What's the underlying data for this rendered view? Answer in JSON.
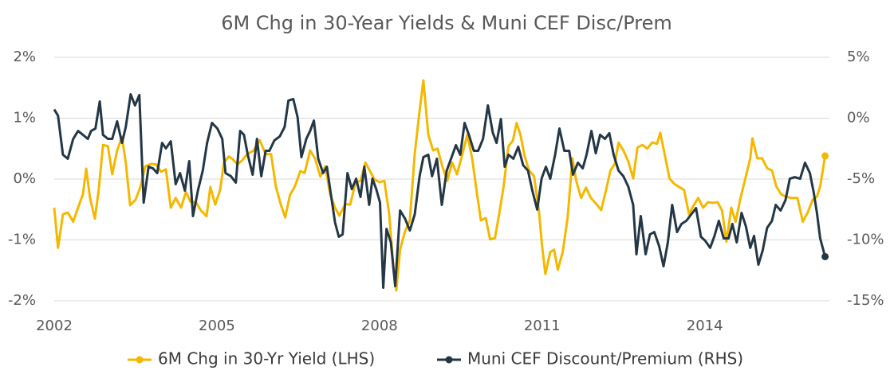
{
  "chart_data": {
    "type": "line",
    "title": "6M Chg in 30-Year Yields & Muni CEF Disc/Prem",
    "xlim": [
      2002,
      2016.3
    ],
    "xticks": [
      2002,
      2005,
      2008,
      2011,
      2014
    ],
    "ylim": [
      -2,
      2
    ],
    "yticks": [
      {
        "value": -2,
        "label": "-2%"
      },
      {
        "value": -1,
        "label": "-1%"
      },
      {
        "value": 0,
        "label": "0%"
      },
      {
        "value": 1,
        "label": "1%"
      },
      {
        "value": 2,
        "label": "2%"
      }
    ],
    "y2lim": [
      -15,
      5
    ],
    "y2ticks": [
      {
        "value": -15,
        "label": "-15%"
      },
      {
        "value": -10,
        "label": "-10%"
      },
      {
        "value": -5,
        "label": "-5%"
      },
      {
        "value": 0,
        "label": "0%"
      },
      {
        "value": 5,
        "label": "5%"
      }
    ],
    "grid": true,
    "legend": "bottom",
    "series": [
      {
        "name": "6M Chg in 30-Yr Yield (LHS)",
        "color": "#f5b800",
        "axis": "y",
        "x": [
          2002.0,
          2002.07,
          2002.16,
          2002.25,
          2002.35,
          2002.46,
          2002.53,
          2002.59,
          2002.66,
          2002.75,
          2002.82,
          2002.9,
          2002.99,
          2003.07,
          2003.16,
          2003.25,
          2003.32,
          2003.4,
          2003.5,
          2003.59,
          2003.68,
          2003.79,
          2003.88,
          2003.97,
          2004.06,
          2004.15,
          2004.24,
          2004.34,
          2004.43,
          2004.51,
          2004.62,
          2004.71,
          2004.81,
          2004.88,
          2004.97,
          2005.06,
          2005.13,
          2005.22,
          2005.29,
          2005.38,
          2005.47,
          2005.56,
          2005.68,
          2005.79,
          2005.9,
          2006.0,
          2006.09,
          2006.18,
          2006.26,
          2006.35,
          2006.44,
          2006.54,
          2006.62,
          2006.72,
          2006.81,
          2006.91,
          2007.0,
          2007.09,
          2007.18,
          2007.26,
          2007.37,
          2007.46,
          2007.56,
          2007.65,
          2007.74,
          2007.82,
          2007.91,
          2008.0,
          2008.09,
          2008.18,
          2008.26,
          2008.31,
          2008.38,
          2008.47,
          2008.56,
          2008.65,
          2008.74,
          2008.81,
          2008.9,
          2008.99,
          2009.07,
          2009.16,
          2009.25,
          2009.34,
          2009.43,
          2009.53,
          2009.62,
          2009.71,
          2009.79,
          2009.87,
          2009.96,
          2010.04,
          2010.13,
          2010.22,
          2010.29,
          2010.38,
          2010.46,
          2010.53,
          2010.6,
          2010.68,
          2010.76,
          2010.85,
          2010.94,
          2011.0,
          2011.06,
          2011.15,
          2011.22,
          2011.29,
          2011.38,
          2011.47,
          2011.56,
          2011.63,
          2011.72,
          2011.81,
          2011.9,
          2012.0,
          2012.09,
          2012.18,
          2012.26,
          2012.34,
          2012.41,
          2012.5,
          2012.59,
          2012.68,
          2012.76,
          2012.85,
          2012.94,
          2013.03,
          2013.12,
          2013.18,
          2013.26,
          2013.35,
          2013.44,
          2013.53,
          2013.62,
          2013.71,
          2013.79,
          2013.88,
          2013.97,
          2014.06,
          2014.15,
          2014.24,
          2014.32,
          2014.4,
          2014.49,
          2014.57,
          2014.66,
          2014.75,
          2014.84,
          2014.88,
          2014.97,
          2015.06,
          2015.15,
          2015.24,
          2015.32,
          2015.41,
          2015.5,
          2015.59,
          2015.71,
          2015.81,
          2015.9,
          2015.99,
          2016.07,
          2016.13,
          2016.22
        ],
        "values": [
          -0.47,
          -1.13,
          -0.58,
          -0.55,
          -0.7,
          -0.42,
          -0.25,
          0.17,
          -0.31,
          -0.65,
          -0.18,
          0.56,
          0.54,
          0.08,
          0.47,
          0.69,
          0.27,
          -0.43,
          -0.34,
          -0.13,
          0.21,
          0.25,
          0.24,
          0.12,
          0.16,
          -0.47,
          -0.31,
          -0.47,
          -0.21,
          -0.37,
          -0.39,
          -0.52,
          -0.61,
          -0.13,
          -0.42,
          -0.18,
          0.27,
          0.37,
          0.33,
          0.24,
          0.31,
          0.41,
          0.47,
          0.64,
          0.41,
          0.41,
          -0.13,
          -0.42,
          -0.63,
          -0.26,
          -0.12,
          0.13,
          0.1,
          0.47,
          0.34,
          0.04,
          0.21,
          -0.25,
          -0.47,
          -0.6,
          -0.41,
          -0.42,
          -0.05,
          -0.03,
          0.27,
          0.14,
          -0.01,
          -0.05,
          -0.03,
          -0.58,
          -1.49,
          -1.83,
          -1.16,
          -0.86,
          -0.68,
          0.41,
          1.12,
          1.62,
          0.73,
          0.47,
          0.5,
          0.21,
          -0.03,
          0.27,
          0.08,
          0.41,
          0.73,
          0.34,
          -0.18,
          -0.68,
          -0.64,
          -0.99,
          -0.97,
          -0.51,
          -0.12,
          0.54,
          0.63,
          0.92,
          0.73,
          0.37,
          0.14,
          0.05,
          -0.51,
          -1.1,
          -1.56,
          -1.2,
          -1.16,
          -1.49,
          -1.2,
          -0.64,
          0.34,
          -0.03,
          -0.31,
          -0.14,
          -0.31,
          -0.41,
          -0.51,
          -0.18,
          0.14,
          0.25,
          0.6,
          0.47,
          0.29,
          0.01,
          0.52,
          0.56,
          0.5,
          0.6,
          0.58,
          0.76,
          0.41,
          0.01,
          -0.08,
          -0.13,
          -0.18,
          -0.58,
          -0.44,
          -0.31,
          -0.47,
          -0.38,
          -0.39,
          -0.38,
          -0.52,
          -1.03,
          -0.47,
          -0.7,
          -0.31,
          0.01,
          0.34,
          0.67,
          0.34,
          0.34,
          0.18,
          0.14,
          -0.12,
          -0.25,
          -0.29,
          -0.31,
          -0.31,
          -0.7,
          -0.55,
          -0.34,
          -0.29,
          -0.12,
          0.38
        ]
      },
      {
        "name": "Muni CEF Discount/Premium (RHS)",
        "color": "#243746",
        "axis": "y2",
        "x": [
          2002.0,
          2002.07,
          2002.16,
          2002.25,
          2002.35,
          2002.44,
          2002.53,
          2002.62,
          2002.68,
          2002.76,
          2002.84,
          2002.9,
          2002.99,
          2003.07,
          2003.16,
          2003.25,
          2003.32,
          2003.41,
          2003.49,
          2003.57,
          2003.65,
          2003.74,
          2003.82,
          2003.9,
          2003.99,
          2004.06,
          2004.15,
          2004.24,
          2004.32,
          2004.41,
          2004.49,
          2004.56,
          2004.65,
          2004.74,
          2004.82,
          2004.91,
          2005.01,
          2005.1,
          2005.16,
          2005.26,
          2005.35,
          2005.43,
          2005.5,
          2005.57,
          2005.66,
          2005.74,
          2005.82,
          2005.9,
          2005.97,
          2006.06,
          2006.16,
          2006.25,
          2006.32,
          2006.41,
          2006.49,
          2006.56,
          2006.65,
          2006.72,
          2006.79,
          2006.87,
          2006.96,
          2007.03,
          2007.1,
          2007.18,
          2007.25,
          2007.32,
          2007.41,
          2007.49,
          2007.57,
          2007.65,
          2007.72,
          2007.81,
          2007.87,
          2007.94,
          2008.01,
          2008.07,
          2008.13,
          2008.21,
          2008.29,
          2008.38,
          2008.47,
          2008.56,
          2008.65,
          2008.74,
          2008.81,
          2008.9,
          2008.97,
          2009.06,
          2009.15,
          2009.24,
          2009.32,
          2009.41,
          2009.49,
          2009.57,
          2009.65,
          2009.74,
          2009.82,
          2009.91,
          2010.0,
          2010.09,
          2010.16,
          2010.24,
          2010.31,
          2010.38,
          2010.47,
          2010.56,
          2010.65,
          2010.74,
          2010.82,
          2010.91,
          2010.99,
          2011.07,
          2011.15,
          2011.24,
          2011.32,
          2011.41,
          2011.5,
          2011.57,
          2011.66,
          2011.75,
          2011.82,
          2011.91,
          2011.99,
          2012.07,
          2012.16,
          2012.24,
          2012.32,
          2012.41,
          2012.5,
          2012.59,
          2012.68,
          2012.74,
          2012.82,
          2012.91,
          2012.99,
          2013.07,
          2013.16,
          2013.24,
          2013.32,
          2013.4,
          2013.49,
          2013.57,
          2013.66,
          2013.75,
          2013.84,
          2013.93,
          2014.01,
          2014.1,
          2014.18,
          2014.26,
          2014.35,
          2014.44,
          2014.51,
          2014.59,
          2014.68,
          2014.76,
          2014.84,
          2014.91,
          2014.99,
          2015.07,
          2015.15,
          2015.24,
          2015.31,
          2015.4,
          2015.49,
          2015.57,
          2015.66,
          2015.76,
          2015.85,
          2015.94,
          2016.01,
          2016.07,
          2016.13,
          2016.22
        ],
        "values": [
          0.72,
          0.2,
          -3.0,
          -3.33,
          -1.7,
          -1.05,
          -1.37,
          -1.7,
          -1.05,
          -0.85,
          1.37,
          -1.37,
          -1.7,
          -1.7,
          -0.26,
          -2.03,
          -0.72,
          1.96,
          1.05,
          1.9,
          -6.93,
          -3.99,
          -4.12,
          -4.51,
          -2.03,
          -2.48,
          -1.9,
          -5.42,
          -4.51,
          -5.95,
          -3.53,
          -8.04,
          -5.95,
          -4.31,
          -2.03,
          -0.39,
          -0.85,
          -1.7,
          -4.51,
          -4.77,
          -5.29,
          -1.05,
          -1.37,
          -3.0,
          -4.64,
          -1.7,
          -4.77,
          -2.68,
          -2.68,
          -1.83,
          -1.5,
          -0.72,
          1.44,
          1.57,
          0.07,
          -3.2,
          -1.7,
          -1.05,
          -0.2,
          -3.33,
          -4.51,
          -3.99,
          -6.14,
          -8.56,
          -9.74,
          -9.54,
          -4.51,
          -5.82,
          -4.97,
          -6.47,
          -3.99,
          -7.12,
          -4.97,
          -5.82,
          -6.93,
          -13.92,
          -9.09,
          -10.2,
          -13.79,
          -7.58,
          -8.24,
          -9.22,
          -7.91,
          -4.77,
          -3.2,
          -3.0,
          -4.77,
          -3.33,
          -7.12,
          -4.31,
          -3.33,
          -2.22,
          -3.0,
          -0.39,
          -1.37,
          -2.68,
          -2.68,
          -1.7,
          1.05,
          -1.18,
          -2.03,
          -0.07,
          -3.99,
          -3.0,
          -3.33,
          -2.35,
          -3.86,
          -4.31,
          -5.95,
          -7.51,
          -4.97,
          -3.99,
          -4.97,
          -3.0,
          -0.85,
          -2.68,
          -2.68,
          -4.64,
          -3.66,
          -4.12,
          -3.0,
          -1.05,
          -2.88,
          -1.37,
          -1.7,
          -1.24,
          -3.0,
          -4.31,
          -4.77,
          -5.62,
          -7.12,
          -11.18,
          -8.04,
          -11.18,
          -9.54,
          -9.35,
          -10.52,
          -12.16,
          -10.2,
          -7.12,
          -9.35,
          -8.69,
          -8.43,
          -7.91,
          -7.39,
          -9.74,
          -10.07,
          -10.65,
          -9.67,
          -8.43,
          -9.87,
          -9.87,
          -8.69,
          -10.2,
          -7.78,
          -8.89,
          -10.65,
          -9.67,
          -12.03,
          -10.85,
          -9.02,
          -8.43,
          -7.12,
          -7.58,
          -6.73,
          -4.97,
          -4.84,
          -4.97,
          -3.66,
          -4.51,
          -6.08,
          -7.78,
          -9.87,
          -11.37
        ]
      }
    ]
  }
}
